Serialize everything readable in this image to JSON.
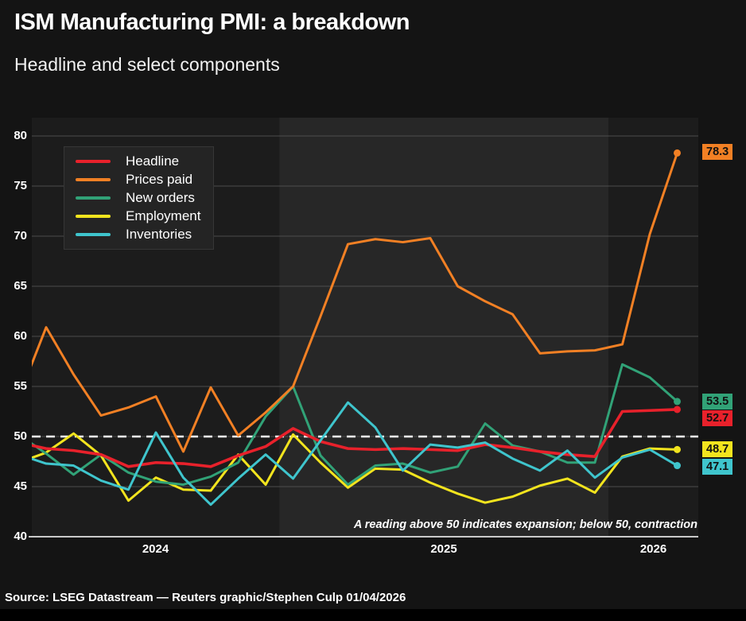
{
  "header": {
    "title": "ISM Manufacturing PMI: a breakdown",
    "subtitle": "Headline and select components"
  },
  "footer": {
    "source": "Source: LSEG Datastream — Reuters graphic/Stephen Culp 01/04/2026"
  },
  "chart_data": {
    "type": "line",
    "title": "ISM Manufacturing PMI: a breakdown",
    "subtitle": "Headline and select components",
    "xlabel": "",
    "ylabel": "",
    "ylim": [
      40,
      80
    ],
    "yticks": [
      80,
      75,
      70,
      65,
      60,
      55,
      50,
      45,
      40
    ],
    "xticks": [
      "2024",
      "2025",
      "2026"
    ],
    "grid": "horizontal",
    "legend_position": "top-left",
    "annotation": "A reading above 50 indicates expansion; below 50, contraction",
    "reference_line": {
      "value": 50,
      "style": "dashed",
      "color": "#ffffff"
    },
    "x": [
      "Mar 2024",
      "Apr 2024",
      "May 2024",
      "Jun 2024",
      "Jul 2024",
      "Aug 2024",
      "Sep 2024",
      "Oct 2024",
      "Nov 2024",
      "Dec 2024",
      "Jan 2025",
      "Feb 2025",
      "Mar 2025",
      "Apr 2025",
      "May 2025",
      "Jun 2025",
      "Jul 2025",
      "Aug 2025",
      "Sep 2025",
      "Oct 2025",
      "Nov 2025",
      "Dec 2025",
      "Jan 2026",
      "Feb 2026",
      "Mar 2026"
    ],
    "series": [
      {
        "id": "headline",
        "name": "Headline",
        "color": "#e8212b",
        "end_label": "52.7",
        "values": [
          49.4,
          48.8,
          48.6,
          48.2,
          47.0,
          47.4,
          47.3,
          47.0,
          48.1,
          49.0,
          50.8,
          49.5,
          48.8,
          48.7,
          48.8,
          48.7,
          48.6,
          49.2,
          48.9,
          48.5,
          48.2,
          48.0,
          52.5,
          52.6,
          52.7
        ]
      },
      {
        "id": "prices_paid",
        "name": "Prices paid",
        "color": "#f28024",
        "end_label": "78.3",
        "values": [
          53.9,
          60.9,
          56.2,
          52.1,
          52.9,
          54.0,
          48.5,
          54.9,
          50.1,
          52.4,
          55.0,
          62.0,
          69.2,
          69.7,
          69.4,
          69.8,
          65.0,
          63.5,
          62.2,
          58.3,
          58.5,
          58.6,
          59.2,
          70.2,
          78.3
        ]
      },
      {
        "id": "new_orders",
        "name": "New orders",
        "color": "#31a277",
        "end_label": "53.5",
        "values": [
          50.2,
          48.3,
          46.2,
          48.2,
          46.4,
          45.5,
          45.2,
          46.0,
          47.4,
          52.0,
          55.0,
          48.1,
          45.2,
          47.1,
          47.3,
          46.4,
          47.0,
          51.3,
          49.1,
          48.5,
          47.4,
          47.4,
          57.2,
          55.9,
          53.5
        ]
      },
      {
        "id": "employment",
        "name": "Employment",
        "color": "#f2e41e",
        "end_label": "48.7",
        "values": [
          47.4,
          48.4,
          50.3,
          48.1,
          43.6,
          45.9,
          44.7,
          44.6,
          48.2,
          45.2,
          50.2,
          47.4,
          44.9,
          46.8,
          46.7,
          45.4,
          44.3,
          43.4,
          44.0,
          45.1,
          45.8,
          44.4,
          48.0,
          48.8,
          48.7
        ]
      },
      {
        "id": "inventories",
        "name": "Inventories",
        "color": "#3fc5cd",
        "end_label": "47.1",
        "values": [
          48.2,
          47.3,
          47.1,
          45.6,
          44.7,
          50.4,
          45.9,
          43.2,
          45.8,
          48.2,
          45.8,
          49.6,
          53.4,
          50.9,
          46.6,
          49.2,
          48.9,
          49.4,
          47.8,
          46.6,
          48.6,
          45.9,
          47.9,
          48.7,
          47.1
        ]
      }
    ]
  }
}
